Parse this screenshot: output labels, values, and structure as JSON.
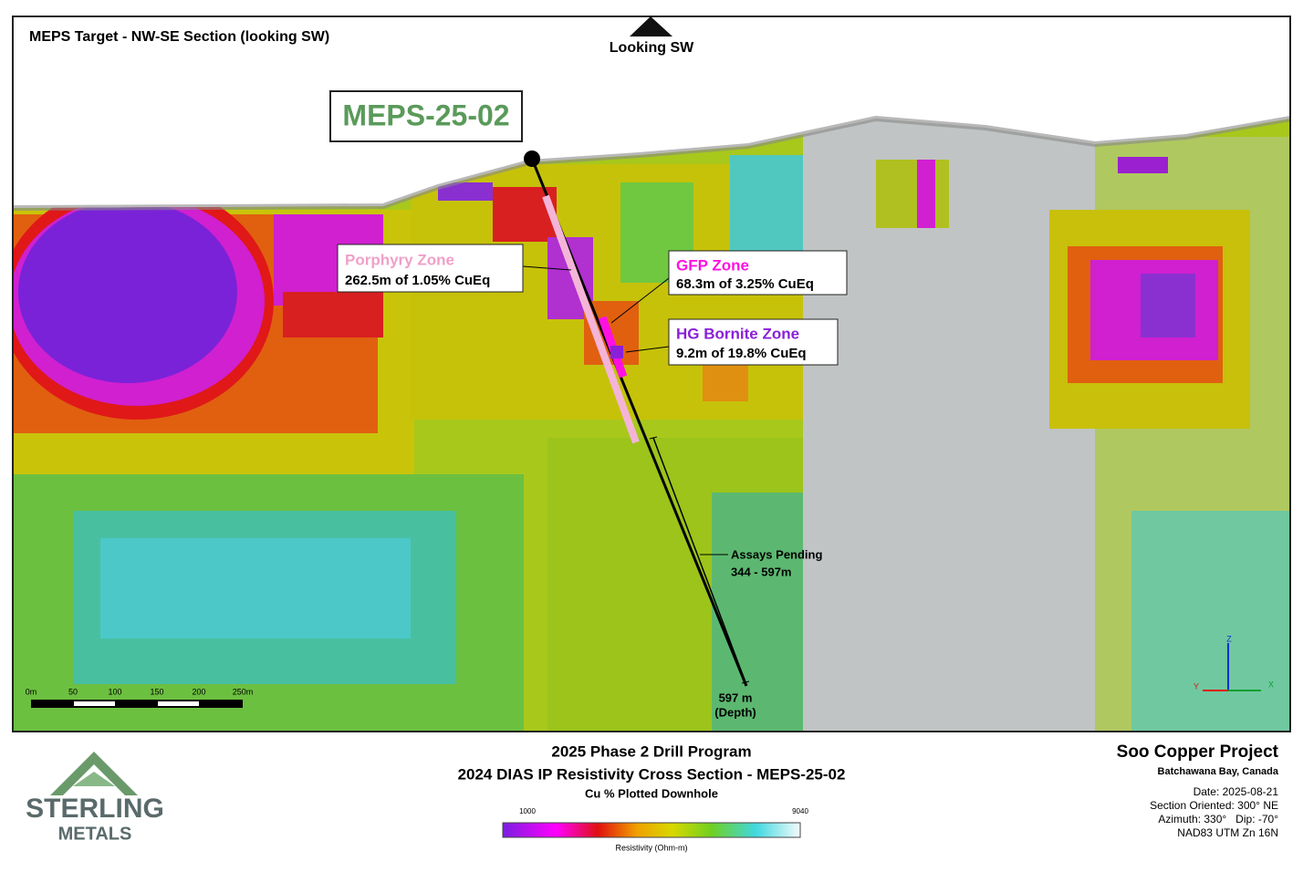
{
  "header": {
    "title": "MEPS Target - NW-SE Section (looking SW)",
    "view": "Looking SW"
  },
  "hole": {
    "label": "MEPS-25-02"
  },
  "zones": [
    {
      "name": "Porphyry Zone",
      "detail": "262.5m of 1.05% CuEq"
    },
    {
      "name": "GFP Zone",
      "detail": "68.3m of 3.25% CuEq"
    },
    {
      "name": "HG Bornite Zone",
      "detail": "9.2m of 19.8% CuEq"
    }
  ],
  "pending": {
    "title": "Assays Pending",
    "range": "344 - 597m"
  },
  "depth": {
    "value": "597 m",
    "note": "(Depth)"
  },
  "scale_bar": [
    "0m",
    "50",
    "100",
    "150",
    "200",
    "250m"
  ],
  "axes": [
    "Z",
    "X",
    "Y"
  ],
  "footer": {
    "line1": "2025 Phase 2 Drill Program",
    "line2": "2024 DIAS IP Resistivity Cross Section - MEPS-25-02",
    "line3": "Cu % Plotted Downhole",
    "colorbar_min": "1000",
    "colorbar_max": "9040",
    "colorbar_title": "Resistivity (Ohm-m)"
  },
  "project": {
    "name": "Soo Copper Project",
    "location": "Batchawana Bay, Canada",
    "details": [
      "Date: 2025-08-21",
      "Section Oriented: 300° NE",
      "Azimuth: 330°   Dip: -70°",
      "NAD83 UTM Zn 16N"
    ]
  },
  "logo": {
    "line1": "STERLING",
    "line2": "METALS"
  }
}
